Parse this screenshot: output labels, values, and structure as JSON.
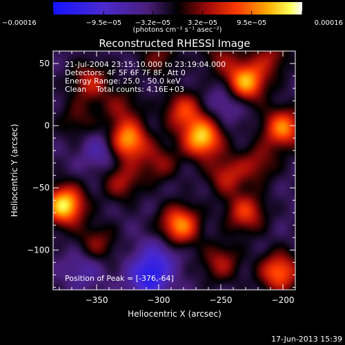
{
  "chart_data": {
    "type": "heatmap",
    "title": "Reconstructed RHESSI Image",
    "xlabel": "Heliocentric X (arcsec)",
    "ylabel": "Heliocentric Y (arcsec)",
    "xlim": [
      -385,
      -190
    ],
    "ylim": [
      -132,
      60
    ],
    "x_ticks": [
      -350,
      -300,
      -250,
      -200
    ],
    "y_ticks": [
      50,
      0,
      -50,
      -100
    ],
    "x_tick_labels": [
      "−350",
      "−300",
      "−250",
      "−200"
    ],
    "y_tick_labels": [
      "50",
      "0",
      "−50",
      "−100"
    ],
    "colorbar": {
      "range": [
        -0.00016,
        0.00016
      ],
      "tick_values": [
        -0.00016,
        -9.5e-05,
        -3.2e-05,
        3.2e-05,
        9.5e-05,
        0.00016
      ],
      "tick_labels": [
        "−0.00016",
        "−9.5e−05",
        "−3.2e−05",
        "3.2e−05",
        "9.5e−05",
        "0.00016"
      ],
      "unit_label": "(photons cm⁻² s⁻¹ asec⁻²)",
      "colormap": "blue-purple-black-red-orange-yellow-white"
    },
    "annotations": {
      "time": "21-Jul-2004 23:15:10.000 to 23:19:04.000",
      "detectors": "Detectors: 4F 5F 6F 7F 8F, Att 0",
      "energy": "Energy Range: 25.0 - 50.0 keV",
      "clean": "Clean    Total counts: 4.16E+03",
      "peak": "Position of Peak = [-376,-64]"
    },
    "peak_position": [
      -376,
      -64
    ],
    "blobs": [
      {
        "x": -376,
        "y": -64,
        "v": 1.0
      },
      {
        "x": -265,
        "y": -10,
        "v": 0.92
      },
      {
        "x": -325,
        "y": -12,
        "v": 0.85
      },
      {
        "x": -230,
        "y": 35,
        "v": 0.88
      },
      {
        "x": -200,
        "y": -2,
        "v": 0.75
      },
      {
        "x": -203,
        "y": -118,
        "v": 0.7
      },
      {
        "x": -283,
        "y": -80,
        "v": 0.78
      },
      {
        "x": -280,
        "y": 12,
        "v": 0.55
      },
      {
        "x": -230,
        "y": -70,
        "v": 0.55
      },
      {
        "x": -355,
        "y": 35,
        "v": 0.45
      },
      {
        "x": -330,
        "y": -45,
        "v": 0.4
      },
      {
        "x": -245,
        "y": -40,
        "v": 0.45
      },
      {
        "x": -350,
        "y": -95,
        "v": 0.35
      },
      {
        "x": -210,
        "y": 55,
        "v": 0.35
      },
      {
        "x": -300,
        "y": 55,
        "v": 0.3
      },
      {
        "x": -250,
        "y": -110,
        "v": 0.4
      },
      {
        "x": -300,
        "y": -30,
        "v": 0.35
      },
      {
        "x": -220,
        "y": -30,
        "v": 0.35
      },
      {
        "x": -365,
        "y": 5,
        "v": 0.25
      },
      {
        "x": -330,
        "y": 15,
        "v": 0.3
      },
      {
        "x": -250,
        "y": 55,
        "v": 0.3
      }
    ],
    "troughs": [
      {
        "x": -308,
        "y": -122,
        "v": -0.6
      },
      {
        "x": -345,
        "y": -20,
        "v": -0.3
      },
      {
        "x": -300,
        "y": -105,
        "v": -0.3
      },
      {
        "x": -360,
        "y": -115,
        "v": -0.25
      },
      {
        "x": -245,
        "y": 20,
        "v": -0.25
      }
    ]
  },
  "footer": {
    "date": "17-Jun-2013 15:39"
  }
}
